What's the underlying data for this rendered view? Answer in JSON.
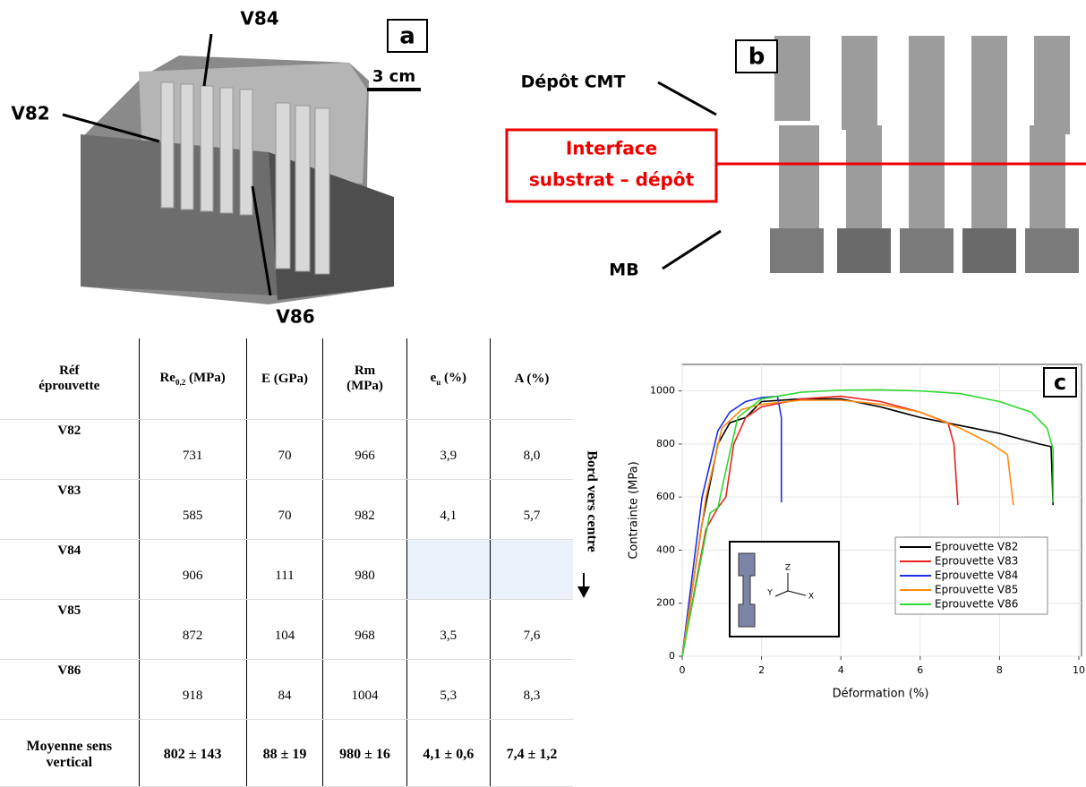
{
  "panel_a": {
    "label": "a",
    "labels": [
      "V84",
      "V82",
      "V86"
    ],
    "scale": "3 cm"
  },
  "panel_b": {
    "label": "b",
    "deposit": "Dépôt CMT",
    "interface": [
      "Interface",
      "substrat – dépôt"
    ],
    "base": "MB"
  },
  "table": {
    "header": [
      [
        "Réf",
        "éprouvette"
      ],
      {
        "main": "Re",
        "sub": "0,2",
        "unit": " (MPa)"
      },
      "E (GPa)",
      [
        "Rm",
        "(MPa)"
      ],
      {
        "main": "e",
        "sub": "u",
        "unit": " (%)"
      },
      "A (%)"
    ],
    "rows": [
      [
        "V82",
        "731",
        "70",
        "966",
        "3,9",
        "8,0"
      ],
      [
        "V83",
        "585",
        "70",
        "982",
        "4,1",
        "5,7"
      ],
      [
        "V84",
        "906",
        "111",
        "980",
        null,
        null
      ],
      [
        "V85",
        "872",
        "104",
        "968",
        "3,5",
        "7,6"
      ],
      [
        "V86",
        "918",
        "84",
        "1004",
        "5,3",
        "8,3"
      ]
    ],
    "footer": [
      [
        "Moyenne sens",
        "vertical"
      ],
      "802 ± 143",
      "88 ± 19",
      "980 ± 16",
      "4,1 ± 0,6",
      "7,4 ± 1,2"
    ]
  },
  "annotation": "Bord vers centre",
  "chart_data": {
    "type": "line",
    "label": "c",
    "xlabel": "Déformation (%)",
    "ylabel": "Contrainte (MPa)",
    "xlim": [
      0,
      10
    ],
    "ylim": [
      0,
      1100
    ],
    "xticks": [
      0,
      2,
      4,
      6,
      8,
      10
    ],
    "yticks": [
      0,
      200,
      400,
      600,
      800,
      1000
    ],
    "grid": true,
    "legend": "lower right",
    "inset_labels": [
      "Z",
      "Y",
      "X"
    ],
    "series": [
      {
        "name": "Eprouvette V82",
        "color": "#000000",
        "x": [
          0,
          0.5,
          0.9,
          1.2,
          1.6,
          2,
          3,
          4,
          5,
          6,
          7,
          8,
          9,
          9.3,
          9.35
        ],
        "values": [
          0,
          500,
          800,
          880,
          900,
          960,
          970,
          970,
          940,
          900,
          870,
          840,
          800,
          790,
          570
        ]
      },
      {
        "name": "Eprouvette V83",
        "color": "#e8231e",
        "x": [
          0,
          0.6,
          0.9,
          1.1,
          1.3,
          1.6,
          2,
          3,
          4,
          5,
          6,
          6.7,
          6.85,
          6.95
        ],
        "values": [
          0,
          480,
          560,
          600,
          800,
          900,
          940,
          970,
          980,
          960,
          920,
          880,
          800,
          570
        ]
      },
      {
        "name": "Eprouvette V84",
        "color": "#1f2ee0",
        "x": [
          0,
          0.5,
          0.9,
          1.2,
          1.6,
          2,
          2.4,
          2.5,
          2.5
        ],
        "values": [
          0,
          600,
          850,
          920,
          960,
          975,
          980,
          900,
          580
        ]
      },
      {
        "name": "Eprouvette V85",
        "color": "#ff8a10",
        "x": [
          0,
          0.6,
          1,
          1.5,
          2,
          3,
          4,
          5,
          6,
          7,
          7.8,
          8.2,
          8.35
        ],
        "values": [
          0,
          600,
          860,
          930,
          950,
          965,
          965,
          950,
          920,
          860,
          800,
          760,
          570
        ]
      },
      {
        "name": "Eprouvette V86",
        "color": "#2ed82e",
        "x": [
          0,
          0.7,
          0.9,
          1.1,
          1.4,
          2,
          3,
          4,
          5,
          6,
          7,
          8,
          8.8,
          9.2,
          9.35,
          9.35
        ],
        "values": [
          0,
          540,
          560,
          700,
          900,
          970,
          995,
          1003,
          1004,
          1000,
          990,
          960,
          920,
          860,
          780,
          580
        ]
      }
    ]
  }
}
